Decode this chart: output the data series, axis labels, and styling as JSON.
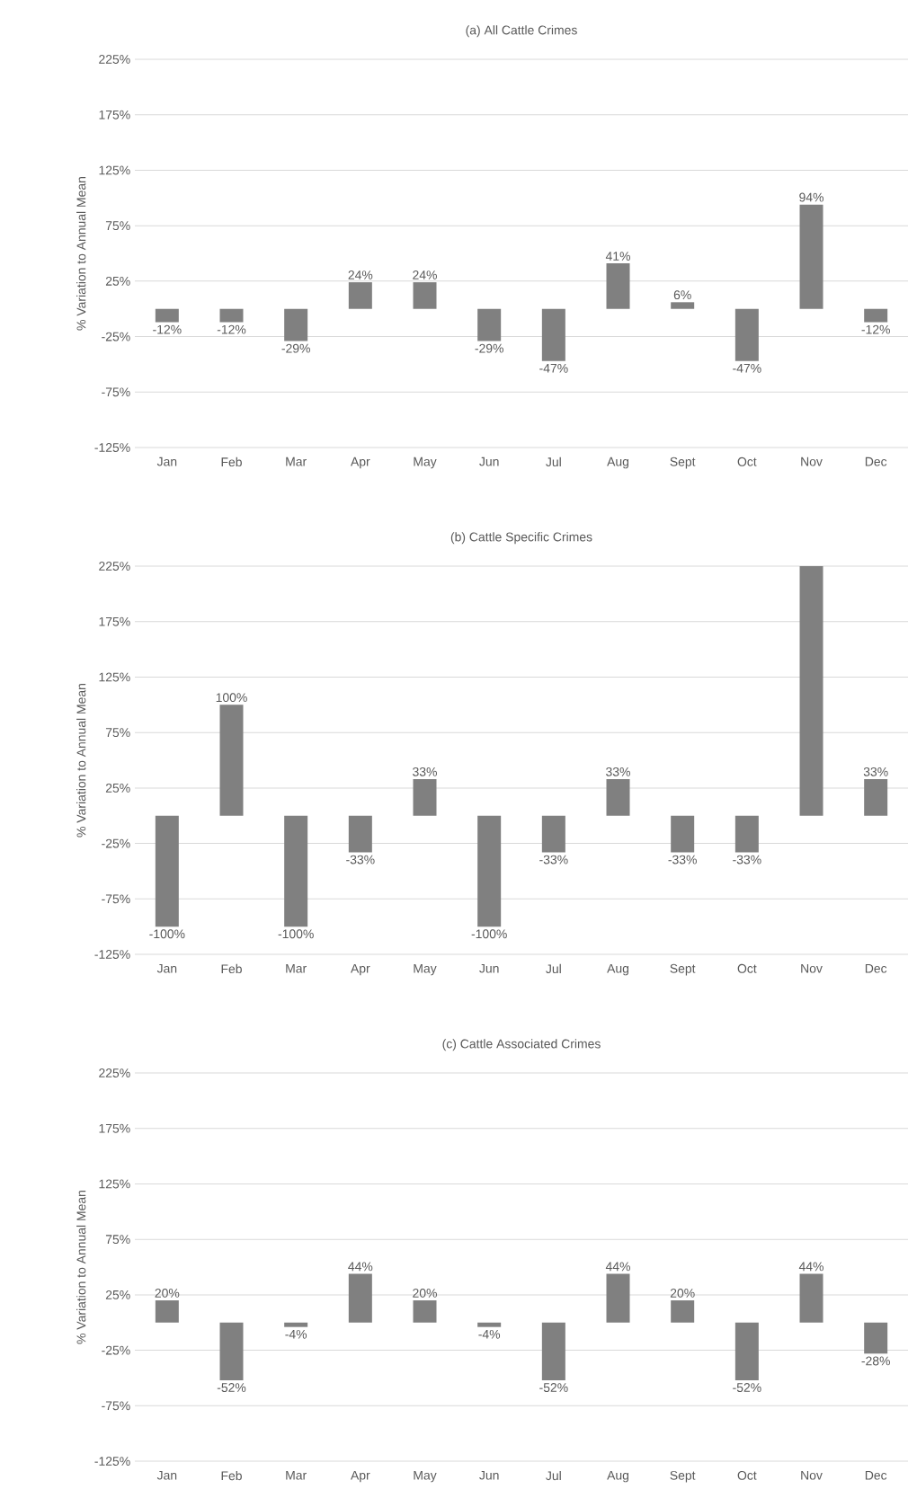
{
  "chart_data": [
    {
      "type": "bar",
      "title": "(a) All Cattle Crimes",
      "ylabel": "% Variation to Annual Mean",
      "categories": [
        "Jan",
        "Feb",
        "Mar",
        "Apr",
        "May",
        "Jun",
        "Jul",
        "Aug",
        "Sept",
        "Oct",
        "Nov",
        "Dec"
      ],
      "values": [
        -12,
        -12,
        -29,
        24,
        24,
        -29,
        -47,
        41,
        6,
        -47,
        94,
        -12
      ],
      "value_labels": [
        "-12%",
        "-12%",
        "-29%",
        "24%",
        "24%",
        "-29%",
        "-47%",
        "41%",
        "6%",
        "-47%",
        "94%",
        "-12%"
      ],
      "color": "#808080",
      "ylim": [
        -125,
        225
      ],
      "yticks": [
        {
          "value": -125,
          "label": "-125%"
        },
        {
          "value": -75,
          "label": "-75%"
        },
        {
          "value": -25,
          "label": "-25%"
        },
        {
          "value": 25,
          "label": "25%"
        },
        {
          "value": 75,
          "label": "75%"
        },
        {
          "value": 125,
          "label": "125%"
        },
        {
          "value": 175,
          "label": "175%"
        },
        {
          "value": 225,
          "label": "225%"
        }
      ],
      "grid": "y"
    },
    {
      "type": "bar",
      "title": "(b) Cattle Specific Crimes",
      "ylabel": "% Variation to Annual Mean",
      "categories": [
        "Jan",
        "Feb",
        "Mar",
        "Apr",
        "May",
        "Jun",
        "Jul",
        "Aug",
        "Sept",
        "Oct",
        "Nov",
        "Dec"
      ],
      "values": [
        -100,
        100,
        -100,
        -33,
        33,
        -100,
        -33,
        33,
        -33,
        -33,
        225,
        33
      ],
      "value_labels": [
        "-100%",
        "100%",
        "-100%",
        "-33%",
        "33%",
        "-100%",
        "-33%",
        "33%",
        "-33%",
        "-33%",
        null,
        "33%"
      ],
      "color": "#808080",
      "ylim": [
        -125,
        225
      ],
      "yticks": [
        {
          "value": -125,
          "label": "-125%"
        },
        {
          "value": -75,
          "label": "-75%"
        },
        {
          "value": -25,
          "label": "-25%"
        },
        {
          "value": 25,
          "label": "25%"
        },
        {
          "value": 75,
          "label": "75%"
        },
        {
          "value": 125,
          "label": "125%"
        },
        {
          "value": 175,
          "label": "175%"
        },
        {
          "value": 225,
          "label": "225%"
        }
      ],
      "grid": "y"
    },
    {
      "type": "bar",
      "title": "(c) Cattle Associated Crimes",
      "ylabel": "% Variation to Annual Mean",
      "categories": [
        "Jan",
        "Feb",
        "Mar",
        "Apr",
        "May",
        "Jun",
        "Jul",
        "Aug",
        "Sept",
        "Oct",
        "Nov",
        "Dec"
      ],
      "values": [
        20,
        -52,
        -4,
        44,
        20,
        -4,
        -52,
        44,
        20,
        -52,
        44,
        -28
      ],
      "value_labels": [
        "20%",
        "-52%",
        "-4%",
        "44%",
        "20%",
        "-4%",
        "-52%",
        "44%",
        "20%",
        "-52%",
        "44%",
        "-28%"
      ],
      "color": "#808080",
      "ylim": [
        -125,
        225
      ],
      "yticks": [
        {
          "value": -125,
          "label": "-125%"
        },
        {
          "value": -75,
          "label": "-75%"
        },
        {
          "value": -25,
          "label": "-25%"
        },
        {
          "value": 25,
          "label": "25%"
        },
        {
          "value": 75,
          "label": "75%"
        },
        {
          "value": 125,
          "label": "125%"
        },
        {
          "value": 175,
          "label": "175%"
        },
        {
          "value": 225,
          "label": "225%"
        }
      ],
      "grid": "y"
    }
  ]
}
